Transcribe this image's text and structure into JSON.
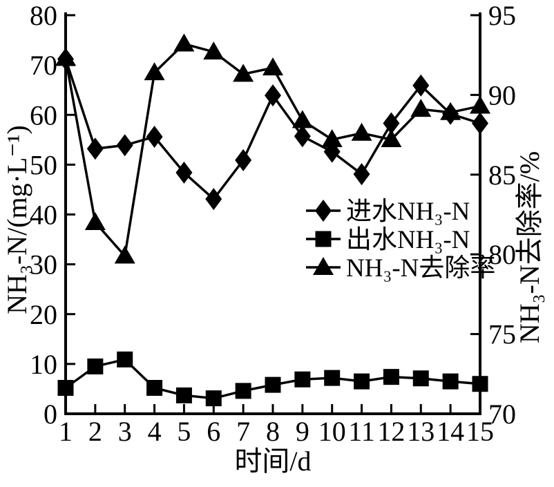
{
  "figure": {
    "background": "#ffffff",
    "foreground": "#000000"
  },
  "chart_data": {
    "type": "line",
    "title": "",
    "grid": false,
    "legend_position": "inside-center-right",
    "x_axis": {
      "label": "时间/d",
      "min": 1,
      "max": 15,
      "ticks": [
        1,
        2,
        3,
        4,
        5,
        6,
        7,
        8,
        9,
        10,
        11,
        12,
        13,
        14,
        15
      ]
    },
    "left_axis": {
      "label": "NH₃-N/(mg·L⁻¹)",
      "min": 0,
      "max": 80,
      "ticks": [
        0,
        10,
        20,
        30,
        40,
        50,
        60,
        70,
        80
      ]
    },
    "right_axis": {
      "label": "NH₃-N去除率/%",
      "min": 70,
      "max": 95,
      "ticks": [
        70,
        75,
        80,
        85,
        90,
        95
      ]
    },
    "x": [
      1,
      2,
      3,
      4,
      5,
      6,
      7,
      8,
      9,
      10,
      11,
      12,
      13,
      14,
      15
    ],
    "series": [
      {
        "name": "进水NH₃-N",
        "marker": "diamond",
        "axis": "left",
        "color": "#000000",
        "values": [
          71.2,
          53.2,
          53.9,
          55.6,
          48.4,
          43.1,
          50.9,
          63.9,
          55.7,
          52.6,
          48.1,
          58.3,
          65.9,
          60.2,
          58.3
        ]
      },
      {
        "name": "出水NH₃-N",
        "marker": "square",
        "axis": "left",
        "color": "#000000",
        "values": [
          5.2,
          9.5,
          10.9,
          5.2,
          3.7,
          3.1,
          4.6,
          5.8,
          6.9,
          7.2,
          6.5,
          7.4,
          7.1,
          6.5,
          6.0
        ]
      },
      {
        "name": "NH₃-N去除率",
        "marker": "triangle",
        "axis": "right",
        "color": "#000000",
        "values": [
          92.3,
          82.0,
          79.9,
          91.4,
          93.2,
          92.7,
          91.3,
          91.7,
          88.4,
          87.2,
          87.6,
          87.2,
          89.1,
          88.9,
          89.3
        ]
      }
    ]
  }
}
